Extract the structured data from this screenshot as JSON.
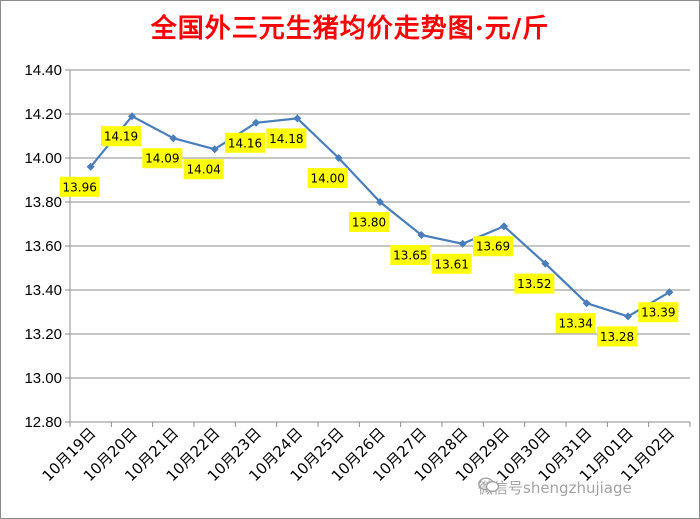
{
  "chart_data": {
    "type": "line",
    "title": "全国外三元生猪均价走势图·元/斤",
    "categories": [
      "10月19日",
      "10月20日",
      "10月21日",
      "10月22日",
      "10月23日",
      "10月24日",
      "10月25日",
      "10月26日",
      "10月27日",
      "10月28日",
      "10月29日",
      "10月30日",
      "10月31日",
      "11月01日",
      "11月02日"
    ],
    "values": [
      13.96,
      14.19,
      14.09,
      14.04,
      14.16,
      14.18,
      14.0,
      13.8,
      13.65,
      13.61,
      13.69,
      13.52,
      13.34,
      13.28,
      13.39
    ],
    "data_labels": [
      "13.96",
      "14.19",
      "14.09",
      "14.04",
      "14.16",
      "14.18",
      "14.00",
      "13.80",
      "13.65",
      "13.61",
      "13.69",
      "13.52",
      "13.34",
      "13.28",
      "13.39"
    ],
    "y_ticks": [
      "12.80",
      "13.00",
      "13.20",
      "13.40",
      "13.60",
      "13.80",
      "14.00",
      "14.20",
      "14.40"
    ],
    "ylim": [
      12.8,
      14.4
    ],
    "grid": true,
    "legend": "none",
    "colors": {
      "line": "#4a7ebb",
      "label_bg": "#ffff00",
      "title": "#ff0000",
      "grid": "#8c8c8c"
    }
  },
  "watermark": {
    "text": "微信号shengzhujiage",
    "icon": "wechat-icon"
  }
}
